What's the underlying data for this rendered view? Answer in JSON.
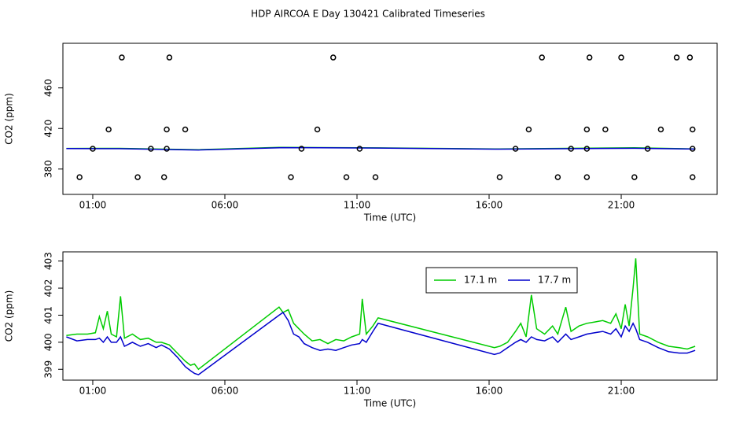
{
  "chart_data": [
    {
      "type": "scatter",
      "title": "HDP AIRCOA E  Day 130421  Calibrated Timeseries",
      "xlabel": "Time (UTC)",
      "ylabel": "CO2 (ppm)",
      "xlim": [
        -0.13,
        24.63
      ],
      "ylim": [
        355,
        504
      ],
      "xticks": [
        {
          "value": 1,
          "label": "01:00"
        },
        {
          "value": 6,
          "label": "06:00"
        },
        {
          "value": 11,
          "label": "11:00"
        },
        {
          "value": 16,
          "label": "16:00"
        },
        {
          "value": 21,
          "label": "21:00"
        }
      ],
      "yticks": [
        380,
        420,
        460
      ],
      "color": "#000000",
      "x": [
        0.5,
        2.7,
        3.7,
        8.5,
        10.6,
        11.7,
        16.4,
        18.6,
        19.7,
        21.5,
        23.7,
        2.1,
        3.9,
        10.1,
        18.0,
        19.8,
        21.0,
        23.1,
        23.6,
        1.6,
        3.8,
        4.5,
        9.5,
        17.5,
        19.7,
        20.4,
        22.5,
        23.7,
        1.0,
        3.2,
        3.8,
        8.9,
        11.1,
        17.0,
        19.1,
        19.7,
        22.0,
        23.7
      ],
      "values": [
        372,
        372,
        372,
        372,
        372,
        372,
        372,
        372,
        372,
        372,
        372,
        490,
        490,
        490,
        490,
        490,
        490,
        490,
        490,
        419,
        419,
        419,
        419,
        419,
        419,
        419,
        419,
        419,
        400,
        400,
        400,
        400,
        400,
        400,
        400,
        400,
        400,
        400
      ],
      "series": [
        {
          "color": "#00cc00",
          "x": [
            0,
            2,
            5,
            8.05,
            11.8,
            16.2,
            21.5,
            23.8
          ],
          "values": [
            400.3,
            400.4,
            399.1,
            401.3,
            400.9,
            399.8,
            401,
            399.8
          ]
        },
        {
          "color": "#0000cc",
          "x": [
            0,
            2,
            5,
            8.2,
            11.8,
            16.2,
            21.5,
            23.8
          ],
          "values": [
            400.2,
            400.1,
            398.8,
            401.1,
            400.7,
            399.6,
            400.5,
            399.7
          ]
        }
      ]
    },
    {
      "type": "line",
      "xlabel": "Time (UTC)",
      "ylabel": "CO2 (ppm)",
      "xlim": [
        -0.13,
        24.63
      ],
      "ylim": [
        398.6,
        403.34
      ],
      "xticks": [
        {
          "value": 1,
          "label": "01:00"
        },
        {
          "value": 6,
          "label": "06:00"
        },
        {
          "value": 11,
          "label": "11:00"
        },
        {
          "value": 16,
          "label": "16:00"
        },
        {
          "value": 21,
          "label": "21:00"
        }
      ],
      "yticks": [
        399,
        400,
        401,
        402,
        403
      ],
      "legend": "top-right",
      "x": [
        0,
        0.4,
        0.8,
        1.1,
        1.25,
        1.4,
        1.55,
        1.7,
        1.9,
        2.05,
        2.2,
        2.5,
        2.8,
        3.1,
        3.4,
        3.6,
        3.9,
        4.2,
        4.5,
        4.7,
        4.85,
        5.0,
        8.05,
        8.2,
        8.4,
        8.6,
        8.8,
        9.0,
        9.3,
        9.6,
        9.9,
        10.2,
        10.5,
        10.8,
        11.1,
        11.2,
        11.35,
        11.6,
        11.8,
        16.2,
        16.4,
        16.7,
        17.0,
        17.2,
        17.4,
        17.6,
        17.8,
        18.1,
        18.4,
        18.6,
        18.9,
        19.1,
        19.4,
        19.7,
        20.0,
        20.3,
        20.6,
        20.8,
        21.0,
        21.15,
        21.3,
        21.45,
        21.55,
        21.7,
        22.0,
        22.4,
        22.8,
        23.2,
        23.5,
        23.8
      ],
      "series": [
        {
          "name": "17.1 m",
          "color": "#00cc00",
          "values": [
            400.25,
            400.3,
            400.3,
            400.35,
            400.95,
            400.5,
            401.15,
            400.3,
            400.2,
            401.7,
            400.15,
            400.3,
            400.1,
            400.15,
            400.0,
            400.0,
            399.9,
            399.6,
            399.3,
            399.15,
            399.2,
            399.0,
            401.3,
            401.1,
            401.2,
            400.7,
            400.5,
            400.3,
            400.05,
            400.1,
            399.95,
            400.1,
            400.05,
            400.2,
            400.3,
            401.6,
            400.3,
            400.6,
            400.9,
            399.8,
            399.85,
            400.0,
            400.4,
            400.7,
            400.2,
            401.75,
            400.5,
            400.3,
            400.6,
            400.3,
            401.3,
            400.4,
            400.6,
            400.7,
            400.75,
            400.8,
            400.7,
            401.05,
            400.5,
            401.4,
            400.6,
            402.0,
            403.1,
            400.3,
            400.2,
            400.0,
            399.85,
            399.8,
            399.75,
            399.85
          ]
        },
        {
          "name": "17.7 m",
          "color": "#0000cc",
          "values": [
            400.2,
            400.05,
            400.1,
            400.1,
            400.15,
            400.0,
            400.2,
            400.0,
            400.0,
            400.2,
            399.85,
            400.0,
            399.85,
            399.95,
            399.8,
            399.9,
            399.75,
            399.45,
            399.1,
            398.95,
            398.85,
            398.8,
            401.0,
            401.1,
            400.8,
            400.3,
            400.2,
            399.95,
            399.8,
            399.7,
            399.75,
            399.7,
            399.8,
            399.9,
            399.95,
            400.1,
            400.0,
            400.4,
            400.7,
            399.55,
            399.6,
            399.8,
            400.0,
            400.1,
            400.0,
            400.2,
            400.1,
            400.05,
            400.2,
            400.0,
            400.3,
            400.1,
            400.2,
            400.3,
            400.35,
            400.4,
            400.3,
            400.5,
            400.2,
            400.6,
            400.4,
            400.7,
            400.5,
            400.1,
            400.0,
            399.8,
            399.65,
            399.6,
            399.6,
            399.7
          ]
        }
      ]
    }
  ]
}
